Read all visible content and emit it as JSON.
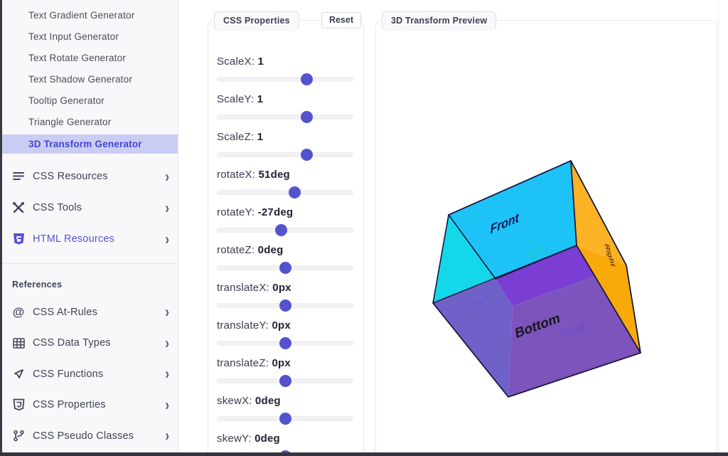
{
  "sidebar": {
    "generators": [
      {
        "label": "Text Gradient Generator",
        "active": false
      },
      {
        "label": "Text Input Generator",
        "active": false
      },
      {
        "label": "Text Rotate Generator",
        "active": false
      },
      {
        "label": "Text Shadow Generator",
        "active": false
      },
      {
        "label": "Tooltip Generator",
        "active": false
      },
      {
        "label": "Triangle Generator",
        "active": false
      },
      {
        "label": "3D Transform Generator",
        "active": true
      }
    ],
    "sections": [
      {
        "icon": "menu-lines-icon",
        "label": "CSS Resources",
        "accent": false,
        "chevron": "›"
      },
      {
        "icon": "tools-icon",
        "label": "CSS Tools",
        "accent": false,
        "chevron": "›"
      },
      {
        "icon": "html5-shield-icon",
        "label": "HTML Resources",
        "accent": true,
        "chevron": "›"
      }
    ],
    "references_heading": "References",
    "references": [
      {
        "icon": "at-sign-icon",
        "label": "CSS At-Rules",
        "chevron": "›"
      },
      {
        "icon": "grid-icon",
        "label": "CSS Data Types",
        "chevron": "›"
      },
      {
        "icon": "send-arrow-icon",
        "label": "CSS Functions",
        "chevron": "›"
      },
      {
        "icon": "css-shield-icon",
        "label": "CSS Properties",
        "chevron": "›"
      },
      {
        "icon": "branch-icon",
        "label": "CSS Pseudo Classes",
        "chevron": "›"
      }
    ],
    "accent_color": "#5a52d5",
    "active_bg": "#c9cdf4",
    "active_text": "#4445cf"
  },
  "properties_panel": {
    "tab": "CSS Properties",
    "reset_label": "Reset",
    "thumb_color": "#5552cd",
    "sliders": [
      {
        "label": "ScaleX:",
        "value": "1",
        "percent": 66
      },
      {
        "label": "ScaleY:",
        "value": "1",
        "percent": 66
      },
      {
        "label": "ScaleZ:",
        "value": "1",
        "percent": 66
      },
      {
        "label": "rotateX:",
        "value": "51deg",
        "percent": 57
      },
      {
        "label": "rotateY:",
        "value": "-27deg",
        "percent": 47
      },
      {
        "label": "rotateZ:",
        "value": "0deg",
        "percent": 50.5
      },
      {
        "label": "translateX:",
        "value": "0px",
        "percent": 50.5
      },
      {
        "label": "translateY:",
        "value": "0px",
        "percent": 50
      },
      {
        "label": "translateZ:",
        "value": "0px",
        "percent": 50
      },
      {
        "label": "skewX:",
        "value": "0deg",
        "percent": 50
      },
      {
        "label": "skewY:",
        "value": "0deg",
        "percent": 50
      }
    ]
  },
  "preview_panel": {
    "tab": "3D Transform Preview",
    "cube": {
      "transform": "rotateX(51deg) rotateY(-27deg)",
      "faces": {
        "front": "Front",
        "top": "Top",
        "left": "Left",
        "right": "Right",
        "bottom": "Bottom",
        "back": "Back"
      },
      "fills": {
        "front": "#1dc3f7",
        "left_visible": "#12d8e9",
        "bottom_top_overlap": "#7a3ed2",
        "bottom_left_overlap": "#6f61c7",
        "bottom_main": "#7d54bb",
        "right_upper": "#fbb224",
        "right_lower": "#f9a90a"
      },
      "edge_color": "#15153f",
      "label_colors": {
        "front": "#141452",
        "top": "#1fd0c0",
        "left": "#5a55e0",
        "right": "#4a2c00",
        "bottom": "#17171b",
        "back": "#5b4fd8"
      }
    }
  }
}
